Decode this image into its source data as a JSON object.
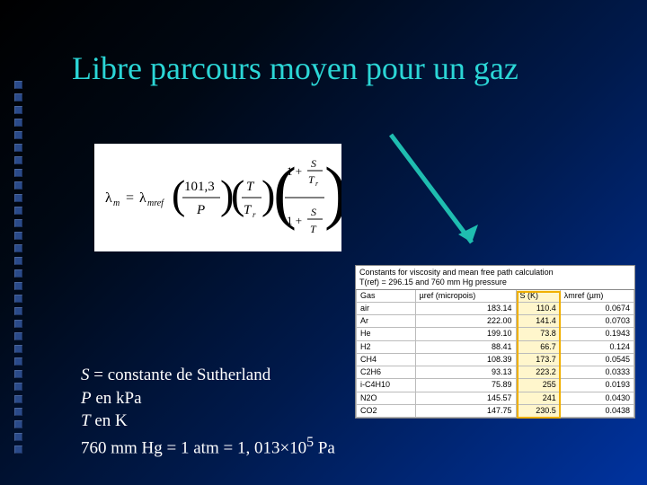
{
  "slide": {
    "title": "Libre parcours moyen pour un gaz",
    "background_gradient": [
      "#000000",
      "#000814",
      "#001a4d",
      "#0033a0"
    ],
    "title_color": "#2bd6d6",
    "bullet_color": "#2a4a8a",
    "bullet_count": 30
  },
  "formula": {
    "display": "λm = λmref (101,3 / P)(T / Tr) · (1 + S/Tr) / (1 + S/T)",
    "bg": "#ffffff"
  },
  "arrow": {
    "color": "#1fbdb0",
    "stroke_width": 5,
    "head_size": 14
  },
  "notes": {
    "line1_prefix": "S",
    "line1_rest": " = constante de Sutherland",
    "line2_prefix": "P",
    "line2_rest": " en kPa",
    "line3_prefix": "T",
    "line3_rest": " en K",
    "line4": "760 mm Hg = 1 atm = 1, 013×10",
    "line4_exp": "5",
    "line4_tail": " Pa",
    "color": "#ffffff",
    "fontsize": 19
  },
  "table": {
    "caption_l1": "Constants for viscosity and mean free path calculation",
    "caption_l2": "T(ref) = 296.15 and 760 mm Hg pressure",
    "highlight_col_bg": "#fff6cc",
    "highlight_border": "#f0b000",
    "columns": [
      "Gas",
      "µref (micropois)",
      "S (K)",
      "λmref (µm)"
    ],
    "rows": [
      [
        "air",
        "183.14",
        "110.4",
        "0.0674"
      ],
      [
        "Ar",
        "222.00",
        "141.4",
        "0.0703"
      ],
      [
        "He",
        "199.10",
        "73.8",
        "0.1943"
      ],
      [
        "H2",
        "88.41",
        "66.7",
        "0.124"
      ],
      [
        "CH4",
        "108.39",
        "173.7",
        "0.0545"
      ],
      [
        "C2H6",
        "93.13",
        "223.2",
        "0.0333"
      ],
      [
        "i-C4H10",
        "75.89",
        "255",
        "0.0193"
      ],
      [
        "N2O",
        "145.57",
        "241",
        "0.0430"
      ],
      [
        "CO2",
        "147.75",
        "230.5",
        "0.0438"
      ]
    ]
  }
}
